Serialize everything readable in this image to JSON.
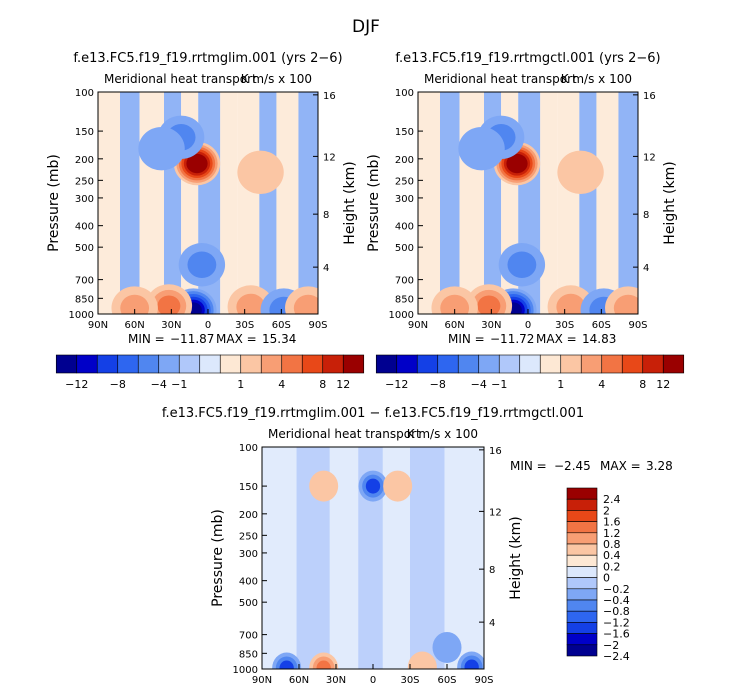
{
  "figure": {
    "title": "DJF"
  },
  "chart_data": [
    {
      "type": "heatmap",
      "title": "f.e13.FC5.f19_f19.rrtmglim.001 (yrs 2−6)",
      "subtitle_left": "Meridional heat transport",
      "subtitle_right": "K m/s x 100",
      "xlabel": "",
      "ylabel": "Pressure (mb)",
      "ylabel_right": "Height (km)",
      "x_ticks": [
        "90N",
        "60N",
        "30N",
        "0",
        "30S",
        "60S",
        "90S"
      ],
      "y_ticks": [
        "100",
        "150",
        "200",
        "250",
        "300",
        "400",
        "500",
        "700",
        "850",
        "1000"
      ],
      "y_ticks_right": [
        "16",
        "12",
        "8",
        "4"
      ],
      "ylim": [
        1000,
        100
      ],
      "min_label": "MIN =",
      "min": "−11.87",
      "max_label": "MAX =",
      "max": "15.34",
      "features": [
        {
          "lat": 9,
          "p": 210,
          "value": 15.34
        },
        {
          "lat": 12,
          "p": 960,
          "value": -11.87
        },
        {
          "lat": 22,
          "p": 160,
          "value": -3
        },
        {
          "lat": 32,
          "p": 920,
          "value": 6
        },
        {
          "lat": 60,
          "p": 940,
          "value": 4
        },
        {
          "lat": -35,
          "p": 930,
          "value": 3
        },
        {
          "lat": -62,
          "p": 960,
          "value": -4
        },
        {
          "lat": -82,
          "p": 940,
          "value": 4
        },
        {
          "lat": -43,
          "p": 230,
          "value": 1.5
        },
        {
          "lat": 38,
          "p": 180,
          "value": -1
        },
        {
          "lat": 5,
          "p": 600,
          "value": -3
        }
      ]
    },
    {
      "type": "heatmap",
      "title": "f.e13.FC5.f19_f19.rrtmgctl.001 (yrs 2−6)",
      "subtitle_left": "Meridional heat transport",
      "subtitle_right": "K m/s x 100",
      "xlabel": "",
      "ylabel": "Pressure (mb)",
      "ylabel_right": "Height (km)",
      "x_ticks": [
        "90N",
        "60N",
        "30N",
        "0",
        "30S",
        "60S",
        "90S"
      ],
      "y_ticks": [
        "100",
        "150",
        "200",
        "250",
        "300",
        "400",
        "500",
        "700",
        "850",
        "1000"
      ],
      "y_ticks_right": [
        "16",
        "12",
        "8",
        "4"
      ],
      "ylim": [
        1000,
        100
      ],
      "min_label": "MIN =",
      "min": "−11.72",
      "max_label": "MAX =",
      "max": "14.83",
      "features": [
        {
          "lat": 9,
          "p": 210,
          "value": 14.83
        },
        {
          "lat": 12,
          "p": 960,
          "value": -11.72
        },
        {
          "lat": 22,
          "p": 160,
          "value": -3
        },
        {
          "lat": 32,
          "p": 920,
          "value": 6
        },
        {
          "lat": 60,
          "p": 940,
          "value": 4
        },
        {
          "lat": -35,
          "p": 930,
          "value": 3
        },
        {
          "lat": -62,
          "p": 960,
          "value": -4
        },
        {
          "lat": -82,
          "p": 940,
          "value": 4
        },
        {
          "lat": -43,
          "p": 230,
          "value": 1.5
        },
        {
          "lat": 38,
          "p": 180,
          "value": -1
        },
        {
          "lat": 5,
          "p": 600,
          "value": -3
        }
      ]
    },
    {
      "type": "heatmap",
      "title": "f.e13.FC5.f19_f19.rrtmglim.001 − f.e13.FC5.f19_f19.rrtmgctl.001",
      "subtitle_left": "Meridional heat transport",
      "subtitle_right": "K m/s x 100",
      "xlabel": "",
      "ylabel": "Pressure (mb)",
      "ylabel_right": "Height (km)",
      "x_ticks": [
        "90N",
        "60N",
        "30N",
        "0",
        "30S",
        "60S",
        "90S"
      ],
      "y_ticks": [
        "100",
        "150",
        "200",
        "250",
        "300",
        "400",
        "500",
        "700",
        "850",
        "1000"
      ],
      "y_ticks_right": [
        "16",
        "12",
        "8",
        "4"
      ],
      "ylim": [
        1000,
        100
      ],
      "min_label": "MIN =",
      "min": "−2.45",
      "max_label": "MAX =",
      "max": "3.28",
      "features": [
        {
          "lat": 0,
          "p": 150,
          "value": -1.2
        },
        {
          "lat": 40,
          "p": 990,
          "value": 1.2
        },
        {
          "lat": -40,
          "p": 980,
          "value": 0.6
        },
        {
          "lat": 70,
          "p": 990,
          "value": -1.2
        },
        {
          "lat": -80,
          "p": 980,
          "value": -1.2
        },
        {
          "lat": 40,
          "p": 150,
          "value": 0.3
        },
        {
          "lat": -20,
          "p": 150,
          "value": 0.4
        },
        {
          "lat": -60,
          "p": 800,
          "value": -0.3
        }
      ]
    }
  ],
  "colorbar_top": {
    "colors": [
      "#000090",
      "#0000c8",
      "#1440e6",
      "#2e66f0",
      "#5086f0",
      "#7ea7f5",
      "#b0c8fa",
      "#dce8fc",
      "#fde8d4",
      "#fbc6a4",
      "#f89e74",
      "#f27444",
      "#e84818",
      "#c82008",
      "#9a0000"
    ],
    "labels": [
      "−12",
      "−8",
      "−4",
      "−1",
      "1",
      "4",
      "8",
      "12"
    ]
  },
  "colorbar_diff": {
    "colors": [
      "#000090",
      "#0000c8",
      "#1440e6",
      "#2e66f0",
      "#5086f0",
      "#7ea7f5",
      "#b0c8fa",
      "#dce8fc",
      "#fde8d4",
      "#fbc6a4",
      "#f89e74",
      "#f27444",
      "#e84818",
      "#c82008",
      "#9a0000"
    ],
    "labels": [
      "2.4",
      "2",
      "1.6",
      "1.2",
      "0.8",
      "0.4",
      "0.2",
      "0",
      "−0.2",
      "−0.4",
      "−0.8",
      "−1.2",
      "−1.6",
      "−2",
      "−2.4"
    ]
  }
}
